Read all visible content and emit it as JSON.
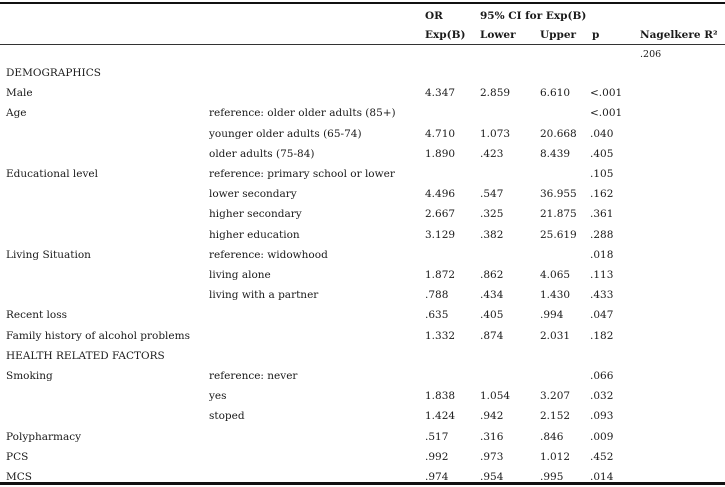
{
  "header": {
    "or_label": "OR",
    "ci_label": "95% CI for Exp(B)",
    "exp_label": "Exp(B)",
    "lower_label": "Lower",
    "upper_label": "Upper",
    "p_label": "p",
    "nagelkerke_label": "Nagelkere R²",
    "nagelkerke_value": ".206"
  },
  "rows": [
    {
      "label": "DEMOGRAPHICS",
      "sub": "",
      "or": "",
      "lower": "",
      "upper": "",
      "p": ""
    },
    {
      "label": "Male",
      "sub": "",
      "or": "4.347",
      "lower": "2.859",
      "upper": "6.610",
      "p": "<.001"
    },
    {
      "label": "Age",
      "sub": "reference: older older adults (85+)",
      "or": "",
      "lower": "",
      "upper": "",
      "p": "<.001"
    },
    {
      "label": "",
      "sub": "younger older adults (65-74)",
      "or": "4.710",
      "lower": "1.073",
      "upper": "20.668",
      "p": ".040"
    },
    {
      "label": "",
      "sub": "older adults (75-84)",
      "or": "1.890",
      "lower": ".423",
      "upper": "8.439",
      "p": ".405"
    },
    {
      "label": "Educational level",
      "sub": "reference: primary school or lower",
      "or": "",
      "lower": "",
      "upper": "",
      "p": ".105"
    },
    {
      "label": "",
      "sub": "lower secondary",
      "or": "4.496",
      "lower": ".547",
      "upper": "36.955",
      "p": ".162"
    },
    {
      "label": "",
      "sub": "higher secondary",
      "or": "2.667",
      "lower": ".325",
      "upper": "21.875",
      "p": ".361"
    },
    {
      "label": "",
      "sub": "higher education",
      "or": "3.129",
      "lower": ".382",
      "upper": "25.619",
      "p": ".288"
    },
    {
      "label": "Living Situation",
      "sub": "reference: widowhood",
      "or": "",
      "lower": "",
      "upper": "",
      "p": ".018"
    },
    {
      "label": "",
      "sub": "living alone",
      "or": "1.872",
      "lower": ".862",
      "upper": "4.065",
      "p": ".113"
    },
    {
      "label": "",
      "sub": "living with a partner",
      "or": ".788",
      "lower": ".434",
      "upper": "1.430",
      "p": ".433"
    },
    {
      "label": "Recent loss",
      "sub": "",
      "or": ".635",
      "lower": ".405",
      "upper": ".994",
      "p": ".047"
    },
    {
      "label": "Family history of alcohol problems",
      "sub": "",
      "or": "1.332",
      "lower": ".874",
      "upper": "2.031",
      "p": ".182"
    },
    {
      "label": "HEALTH RELATED FACTORS",
      "sub": "",
      "or": "",
      "lower": "",
      "upper": "",
      "p": ""
    },
    {
      "label": "Smoking",
      "sub": "reference: never",
      "or": "",
      "lower": "",
      "upper": "",
      "p": ".066"
    },
    {
      "label": "",
      "sub": "yes",
      "or": "1.838",
      "lower": "1.054",
      "upper": "3.207",
      "p": ".032"
    },
    {
      "label": "",
      "sub": "stoped",
      "or": "1.424",
      "lower": ".942",
      "upper": "2.152",
      "p": ".093"
    },
    {
      "label": "Polypharmacy",
      "sub": "",
      "or": ".517",
      "lower": ".316",
      "upper": ".846",
      "p": ".009"
    },
    {
      "label": "PCS",
      "sub": "",
      "or": ".992",
      "lower": ".973",
      "upper": "1.012",
      "p": ".452"
    },
    {
      "label": "MCS",
      "sub": "",
      "or": ".974",
      "lower": ".954",
      "upper": ".995",
      "p": ".014"
    }
  ]
}
